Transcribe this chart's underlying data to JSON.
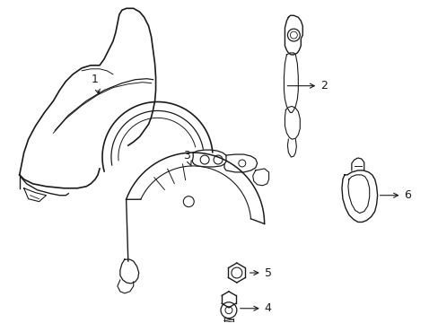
{
  "background_color": "#ffffff",
  "line_color": "#1a1a1a",
  "line_width": 1.0,
  "label_fontsize": 9,
  "figsize": [
    4.89,
    3.6
  ],
  "dpi": 100
}
